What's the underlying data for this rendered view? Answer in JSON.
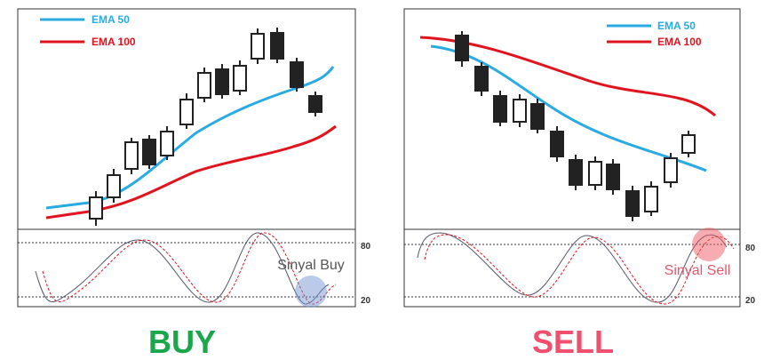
{
  "buy_panel": {
    "legend": [
      "EMA 50",
      "EMA 100"
    ],
    "levels": [
      "80",
      "20"
    ],
    "signal": "Sinyal Buy",
    "caption": "BUY"
  },
  "sell_panel": {
    "legend": [
      "EMA 50",
      "EMA 100"
    ],
    "levels": [
      "80",
      "20"
    ],
    "signal": "Sinyal Sell",
    "caption": "SELL"
  }
}
